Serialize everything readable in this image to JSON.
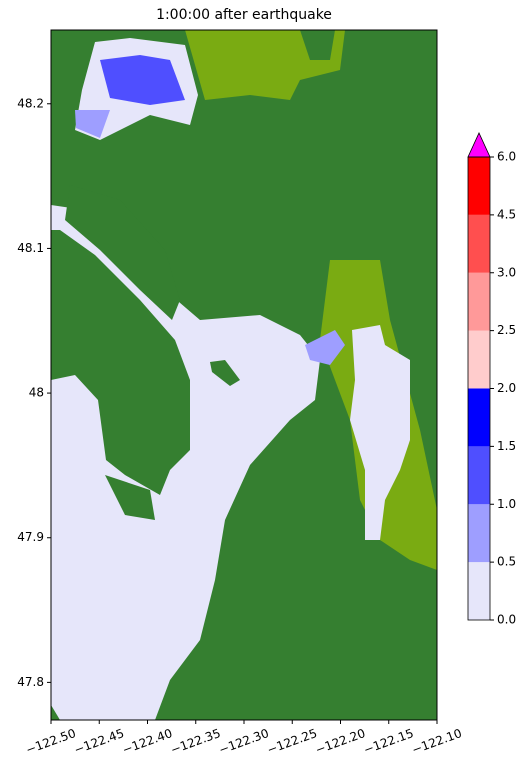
{
  "chart_data": {
    "type": "heatmap",
    "title": "1:00:00 after earthquake",
    "xlim": [
      -122.5,
      -122.1
    ],
    "xticks": [
      {
        "value": -122.5,
        "label": "−122.50"
      },
      {
        "value": -122.45,
        "label": "−122.45"
      },
      {
        "value": -122.4,
        "label": "−122.40"
      },
      {
        "value": -122.35,
        "label": "−122.35"
      },
      {
        "value": -122.3,
        "label": "−122.30"
      },
      {
        "value": -122.25,
        "label": "−122.25"
      },
      {
        "value": -122.2,
        "label": "−122.20"
      },
      {
        "value": -122.15,
        "label": "−122.15"
      },
      {
        "value": -122.1,
        "label": "−122.10"
      }
    ],
    "ylim": [
      47.774,
      48.251
    ],
    "yticks": [
      47.8,
      47.9,
      48.0,
      48.1,
      48.2
    ],
    "colorbar": {
      "ticks": [
        {
          "value": 0,
          "label": "0.0"
        },
        {
          "value": 0.5,
          "label": "0.5"
        },
        {
          "value": 1,
          "label": "1.0"
        },
        {
          "value": 1.5,
          "label": "1.5"
        },
        {
          "value": 2,
          "label": "2.0"
        },
        {
          "value": 2.5,
          "label": "2.5"
        },
        {
          "value": 3,
          "label": "3.0"
        },
        {
          "value": 4.5,
          "label": "4.5"
        },
        {
          "value": 6,
          "label": "6.0"
        }
      ],
      "colors": [
        "#e6e6fa",
        "#9e9eff",
        "#4f4fff",
        "#0000ff",
        "#ffcccc",
        "#ff9999",
        "#ff4f4f",
        "#ff0000"
      ],
      "extend_color": "#ff00ff"
    }
  }
}
